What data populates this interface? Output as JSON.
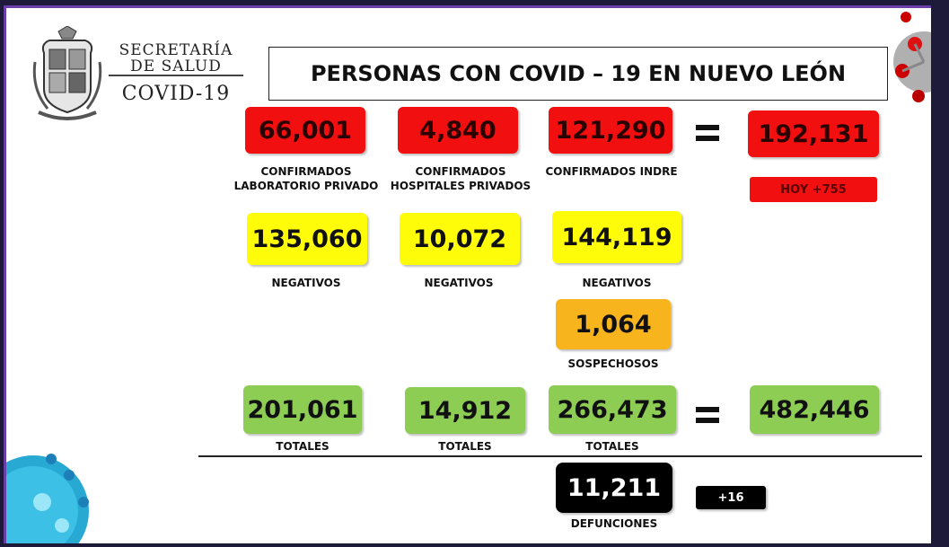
{
  "logo": {
    "line1": "SECRETARÍA",
    "line2": "DE SALUD",
    "line3": "COVID-19"
  },
  "title": "PERSONAS CON COVID – 19 EN NUEVO LEÓN",
  "confirmed": {
    "lab_privado": {
      "value": "66,001",
      "label_line1": "CONFIRMADOS",
      "label_line2": "LABORATORIO PRIVADO"
    },
    "hosp_privados": {
      "value": "4,840",
      "label_line1": "CONFIRMADOS",
      "label_line2": "HOSPITALES PRIVADOS"
    },
    "indre": {
      "value": "121,290",
      "label_line1": "CONFIRMADOS INDRE"
    },
    "total": {
      "value": "192,131",
      "today": "HOY +755"
    }
  },
  "negatives": {
    "lab_privado": {
      "value": "135,060",
      "label": "NEGATIVOS"
    },
    "hosp_privados": {
      "value": "10,072",
      "label": "NEGATIVOS"
    },
    "indre": {
      "value": "144,119",
      "label": "NEGATIVOS"
    }
  },
  "suspected": {
    "value": "1,064",
    "label": "SOSPECHOSOS"
  },
  "totals": {
    "lab_privado": {
      "value": "201,061",
      "label": "TOTALES"
    },
    "hosp_privados": {
      "value": "14,912",
      "label": "TOTALES"
    },
    "indre": {
      "value": "266,473",
      "label": "TOTALES"
    },
    "grand_total": {
      "value": "482,446"
    }
  },
  "deaths": {
    "value": "11,211",
    "label": "DEFUNCIONES",
    "today": "+16"
  },
  "colors": {
    "confirmed": "#f10f10",
    "negative": "#fffc0a",
    "suspected": "#f7b41c",
    "total": "#8dcd54",
    "deaths": "#000000"
  }
}
